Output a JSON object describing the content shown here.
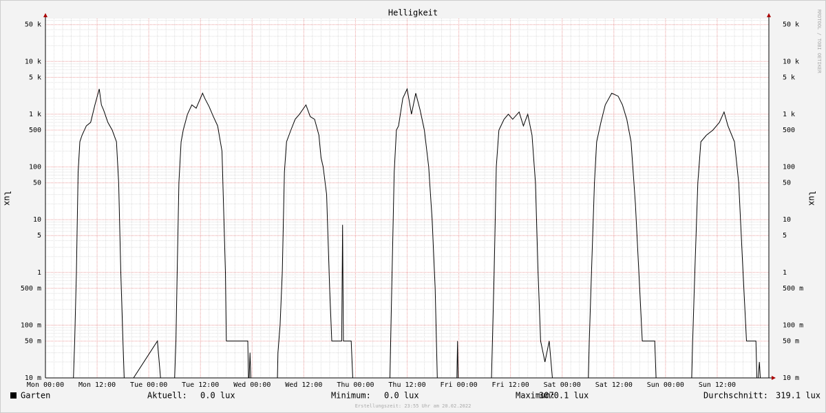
{
  "chart_data": {
    "type": "line",
    "title": "Helligkeit",
    "ylabel": "lux",
    "watermark": "RRDTOOL / TOBI OETIKER",
    "log_y": true,
    "grid": true,
    "ylim": [
      0.01,
      65000
    ],
    "yticks": [
      {
        "value": 0.01,
        "label": "10 m"
      },
      {
        "value": 0.05,
        "label": "50 m"
      },
      {
        "value": 0.1,
        "label": "100 m"
      },
      {
        "value": 0.5,
        "label": "500 m"
      },
      1,
      5,
      10,
      50,
      100,
      500,
      {
        "value": 1000,
        "label": "1 k"
      },
      {
        "value": 5000,
        "label": "5 k"
      },
      {
        "value": 10000,
        "label": "10 k"
      },
      {
        "value": 50000,
        "label": "50 k"
      }
    ],
    "xlim": [
      0,
      168
    ],
    "xticks": [
      {
        "value": 0,
        "label": "Mon 00:00"
      },
      {
        "value": 12,
        "label": "Mon 12:00"
      },
      {
        "value": 24,
        "label": "Tue 00:00"
      },
      {
        "value": 36,
        "label": "Tue 12:00"
      },
      {
        "value": 48,
        "label": "Wed 00:00"
      },
      {
        "value": 60,
        "label": "Wed 12:00"
      },
      {
        "value": 72,
        "label": "Thu 00:00"
      },
      {
        "value": 84,
        "label": "Thu 12:00"
      },
      {
        "value": 96,
        "label": "Fri 00:00"
      },
      {
        "value": 108,
        "label": "Fri 12:00"
      },
      {
        "value": 120,
        "label": "Sat 00:00"
      },
      {
        "value": 132,
        "label": "Sat 12:00"
      },
      {
        "value": 144,
        "label": "Sun 00:00"
      },
      {
        "value": 156,
        "label": "Sun 12:00"
      }
    ],
    "x": [
      0,
      6.5,
      6.8,
      7.2,
      7.6,
      8.0,
      8.5,
      9.5,
      10.5,
      11.5,
      12.5,
      13,
      13.5,
      14.5,
      15.5,
      16.5,
      17,
      17.5,
      18,
      18.4,
      26,
      27,
      30,
      30.3,
      30.6,
      31,
      31.5,
      32,
      33,
      34,
      35,
      36.5,
      37,
      38,
      39,
      40,
      41,
      41.8,
      42,
      42.5,
      47,
      47.2,
      47.5,
      47.8,
      53.8,
      54,
      54.5,
      55,
      55.5,
      56,
      57,
      58,
      59,
      60.5,
      61.5,
      62.5,
      63.5,
      64,
      64.5,
      65.3,
      66,
      66.5,
      68.8,
      69,
      69.2,
      71,
      71.5,
      79.5,
      80,
      80.5,
      81,
      81.5,
      82,
      83,
      84,
      85,
      86,
      87,
      88,
      89,
      89.8,
      90.5,
      91,
      91.2,
      95.5,
      95.7,
      95.9,
      103.5,
      103.8,
      104.2,
      104.7,
      105.3,
      106.5,
      107.5,
      108.5,
      110,
      111,
      112,
      113,
      113.8,
      114.4,
      115,
      116,
      117,
      118,
      126,
      126.3,
      126.8,
      127.5,
      128,
      129,
      130,
      131.5,
      133,
      134,
      135,
      136,
      137,
      138,
      138.6,
      141.5,
      141.8,
      143,
      150,
      150.3,
      150.8,
      151.5,
      152.2,
      153.5,
      155,
      156.5,
      157.6,
      158.5,
      160,
      161,
      162,
      162.8,
      165,
      165.3,
      165.8,
      166.2,
      168
    ],
    "series": [
      {
        "name": "Garten",
        "color": "#000000",
        "values": [
          0,
          0.01,
          0.05,
          1,
          80,
          300,
          400,
          600,
          700,
          1500,
          3000,
          1500,
          1200,
          700,
          500,
          300,
          50,
          1,
          0.05,
          0,
          0.05,
          0,
          0.01,
          0.05,
          1,
          50,
          300,
          500,
          1000,
          1500,
          1300,
          2500,
          2000,
          1400,
          900,
          600,
          200,
          1,
          0.05,
          0.05,
          0.05,
          0,
          0.03,
          0,
          0,
          0.03,
          0.1,
          1,
          80,
          300,
          500,
          800,
          1000,
          1500,
          900,
          800,
          400,
          150,
          100,
          30,
          0.5,
          0.05,
          0.05,
          8,
          0.05,
          0.05,
          0,
          0,
          0.01,
          1,
          80,
          500,
          600,
          2000,
          3000,
          1000,
          2500,
          1200,
          500,
          100,
          10,
          0.5,
          0.01,
          0,
          0,
          0.05,
          0,
          0,
          0.05,
          1,
          100,
          500,
          800,
          1000,
          800,
          1100,
          600,
          1000,
          400,
          50,
          1,
          0.05,
          0.02,
          0.05,
          0,
          0,
          0.05,
          1,
          50,
          300,
          700,
          1500,
          2500,
          2200,
          1500,
          800,
          300,
          20,
          0.5,
          0.05,
          0.05,
          0.01,
          0,
          0,
          0.05,
          1,
          50,
          300,
          400,
          500,
          700,
          1100,
          600,
          300,
          50,
          1,
          0.05,
          0.05,
          0,
          0.02,
          0,
          0
        ]
      }
    ],
    "stats": [
      {
        "label": "Aktuell:",
        "value": "0.0 lux"
      },
      {
        "label": "Minimum:",
        "value": "0.0 lux"
      },
      {
        "label": "Maximum:",
        "value": "3070.1 lux"
      },
      {
        "label": "Durchschnitt:",
        "value": "319.1 lux"
      }
    ],
    "footer": "Erstellungszeit: 23:55 Uhr am 20.02.2022"
  }
}
